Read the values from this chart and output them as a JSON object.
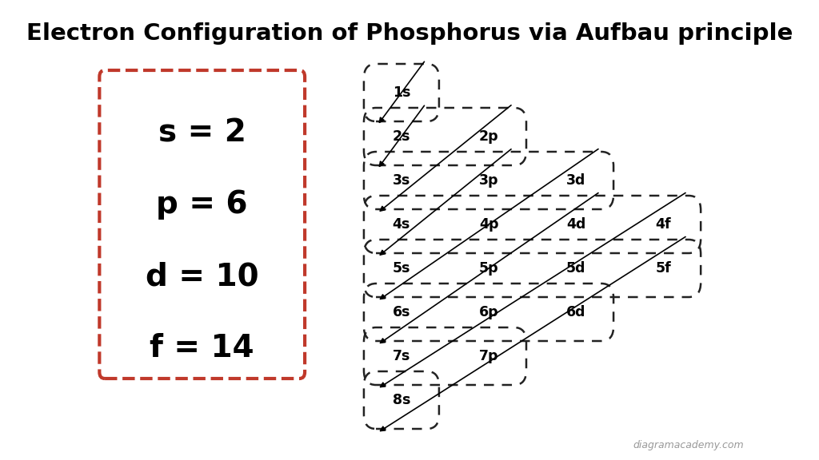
{
  "title": "Electron Configuration of Phosphorus via Aufbau principle",
  "title_fontsize": 21,
  "title_fontweight": "bold",
  "bg_color": "#ffffff",
  "box_color": "#c0392b",
  "text_color": "#000000",
  "watermark": "diagramacademy.com",
  "legend_lines": [
    {
      "label": "s = 2"
    },
    {
      "label": "p = 6"
    },
    {
      "label": "d = 10"
    },
    {
      "label": "f = 14"
    }
  ],
  "orbitals": [
    {
      "label": "1s",
      "col": 0,
      "row": 0
    },
    {
      "label": "2s",
      "col": 0,
      "row": 1
    },
    {
      "label": "2p",
      "col": 1,
      "row": 1
    },
    {
      "label": "3s",
      "col": 0,
      "row": 2
    },
    {
      "label": "3p",
      "col": 1,
      "row": 2
    },
    {
      "label": "3d",
      "col": 2,
      "row": 2
    },
    {
      "label": "4s",
      "col": 0,
      "row": 3
    },
    {
      "label": "4p",
      "col": 1,
      "row": 3
    },
    {
      "label": "4d",
      "col": 2,
      "row": 3
    },
    {
      "label": "4f",
      "col": 3,
      "row": 3
    },
    {
      "label": "5s",
      "col": 0,
      "row": 4
    },
    {
      "label": "5p",
      "col": 1,
      "row": 4
    },
    {
      "label": "5d",
      "col": 2,
      "row": 4
    },
    {
      "label": "5f",
      "col": 3,
      "row": 4
    },
    {
      "label": "6s",
      "col": 0,
      "row": 5
    },
    {
      "label": "6p",
      "col": 1,
      "row": 5
    },
    {
      "label": "6d",
      "col": 2,
      "row": 5
    },
    {
      "label": "7s",
      "col": 0,
      "row": 6
    },
    {
      "label": "7p",
      "col": 1,
      "row": 6
    },
    {
      "label": "8s",
      "col": 0,
      "row": 7
    }
  ],
  "arrow_color": "#000000",
  "dashed_color": "#222222",
  "orbital_fontsize": 12.5
}
